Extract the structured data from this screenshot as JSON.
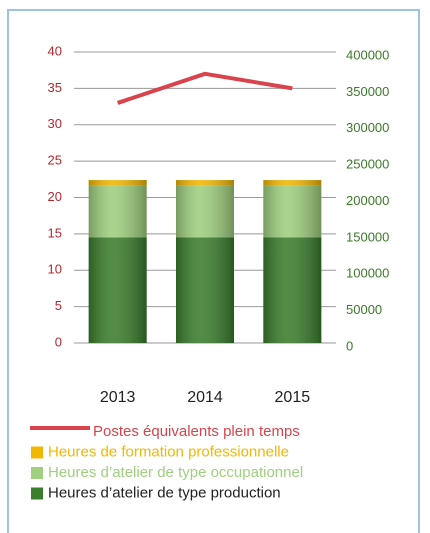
{
  "chart_data": {
    "type": "bar",
    "stacked": true,
    "categories": [
      "2013",
      "2014",
      "2015"
    ],
    "series": [
      {
        "name": "Postes équivalents plein temps",
        "type": "line",
        "color": "#d9434c",
        "values": [
          33,
          37,
          35
        ]
      },
      {
        "name": "Heures de formation professionnelle",
        "color": "#f2b705",
        "axis": "y2",
        "values": [
          7000,
          7000,
          7000
        ]
      },
      {
        "name": "Heures d’atelier de type occupationnel",
        "color": "#9fcf7f",
        "axis": "y2",
        "values": [
          72000,
          72000,
          72000
        ]
      },
      {
        "name": "Heures d’atelier de type production",
        "color": "#3a7d2c",
        "axis": "y2",
        "values": [
          145000,
          145000,
          145000
        ]
      }
    ],
    "ylim": [
      0,
      40
    ],
    "yticks": [
      0,
      5,
      10,
      15,
      20,
      25,
      30,
      35,
      40
    ],
    "y2lim": [
      0,
      400000
    ],
    "y2ticks": [
      0,
      50000,
      100000,
      150000,
      200000,
      250000,
      300000,
      350000,
      400000
    ],
    "grid": true,
    "legend": "bottom"
  }
}
